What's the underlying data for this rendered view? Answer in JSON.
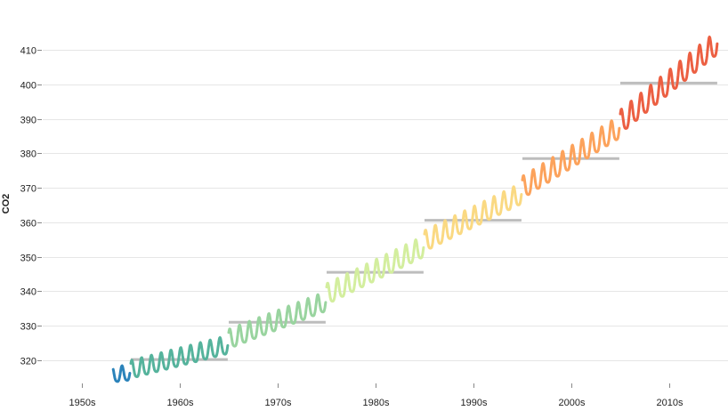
{
  "chart_data": {
    "type": "line",
    "title": "",
    "xlabel": "",
    "ylabel": "CO2",
    "ylim": [
      313,
      416
    ],
    "y_ticks": [
      320,
      330,
      340,
      350,
      360,
      370,
      380,
      390,
      400,
      410
    ],
    "y_tick_labels": [
      "320",
      "330",
      "340",
      "350",
      "360",
      "370",
      "380",
      "390",
      "400",
      "410"
    ],
    "categories": [
      "1950s",
      "1960s",
      "1970s",
      "1980s",
      "1990s",
      "2000s",
      "2010s"
    ],
    "grid": true,
    "series": [
      {
        "decade": "1950s",
        "color": "#2b83ba",
        "start_year": 1958.2,
        "end_year": 1959.9,
        "start_trend": 315.4,
        "end_trend": 316.0,
        "amplitude": 2.2,
        "mean": null
      },
      {
        "decade": "1960s",
        "color": "#55b39c",
        "start_year": 1960.0,
        "end_year": 1969.9,
        "start_trend": 316.8,
        "end_trend": 324.0,
        "amplitude": 2.6,
        "mean": 320.2
      },
      {
        "decade": "1970s",
        "color": "#99d49f",
        "start_year": 1970.0,
        "end_year": 1979.9,
        "start_trend": 325.6,
        "end_trend": 336.5,
        "amplitude": 2.8,
        "mean": 331.0
      },
      {
        "decade": "1980s",
        "color": "#d3ee9e",
        "start_year": 1980.0,
        "end_year": 1989.9,
        "start_trend": 338.6,
        "end_trend": 352.4,
        "amplitude": 3.0,
        "mean": 345.5
      },
      {
        "decade": "1990s",
        "color": "#fad982",
        "start_year": 1990.0,
        "end_year": 1999.9,
        "start_trend": 354.0,
        "end_trend": 367.8,
        "amplitude": 3.0,
        "mean": 360.6
      },
      {
        "decade": "2000s",
        "color": "#fca25b",
        "start_year": 2000.0,
        "end_year": 2009.9,
        "start_trend": 369.5,
        "end_trend": 387.0,
        "amplitude": 3.2,
        "mean": 378.5
      },
      {
        "decade": "2010s",
        "color": "#ec5f42",
        "start_year": 2010.0,
        "end_year": 2019.9,
        "start_trend": 388.5,
        "end_trend": 411.5,
        "amplitude": 3.4,
        "mean": 400.4
      }
    ]
  }
}
